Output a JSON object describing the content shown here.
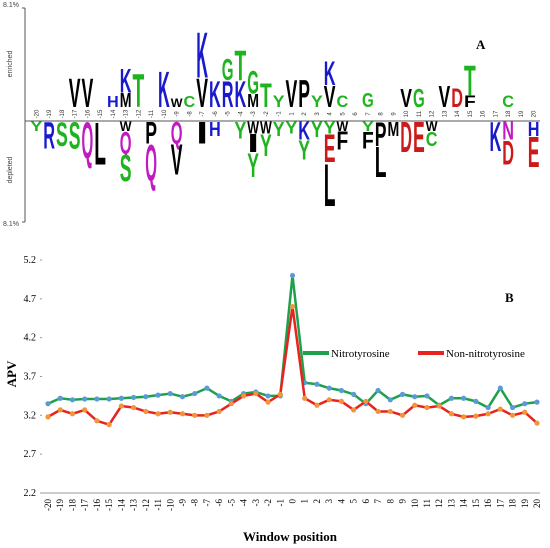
{
  "chart_data": [
    {
      "type": "logo",
      "label": "A",
      "ylim": [
        -8.1,
        8.1
      ],
      "yticks": [
        {
          "value": 8.1,
          "label": "8.1%"
        },
        {
          "value": -8.1,
          "label": "8.1%"
        }
      ],
      "enriched_label": "enriched",
      "depleted_label": "depleted",
      "letter_colors": {
        "K": "#1a1acc",
        "R": "#1a1acc",
        "H": "#1a1acc",
        "D": "#cc1a1a",
        "E": "#cc1a1a",
        "G": "#1fb41f",
        "S": "#1fb41f",
        "T": "#1fb41f",
        "Y": "#1fb41f",
        "C": "#1fb41f",
        "N": "#c01ac0",
        "Q": "#c01ac0"
      },
      "default_letter_color": "#000000",
      "categories": [
        "-20",
        "-19",
        "-18",
        "-17",
        "-16",
        "-15",
        "-14",
        "-13",
        "-12",
        "-11",
        "-10",
        "-9",
        "-8",
        "-7",
        "-6",
        "-5",
        "-4",
        "-3",
        "-2",
        "-1",
        "1",
        "2",
        "3",
        "4",
        "5",
        "6",
        "7",
        "8",
        "9",
        "10",
        "11",
        "12",
        "13",
        "14",
        "15",
        "16",
        "17",
        "18",
        "19",
        "20"
      ],
      "enriched": [
        [],
        [],
        [],
        [
          {
            "letter": "V",
            "value": 2.4
          }
        ],
        [
          {
            "letter": "V",
            "value": 2.4
          }
        ],
        [],
        [
          {
            "letter": "H",
            "value": 0.9
          }
        ],
        [
          {
            "letter": "K",
            "value": 2.0
          },
          {
            "letter": "M",
            "value": 1.2
          }
        ],
        [
          {
            "letter": "T",
            "value": 2.8
          }
        ],
        [],
        [
          {
            "letter": "K",
            "value": 3.0
          }
        ],
        [
          {
            "letter": "W",
            "value": 0.7
          }
        ],
        [
          {
            "letter": "C",
            "value": 0.9
          }
        ],
        [
          {
            "letter": "K",
            "value": 3.8
          },
          {
            "letter": "V",
            "value": 2.4
          }
        ],
        [
          {
            "letter": "K",
            "value": 2.2
          }
        ],
        [
          {
            "letter": "G",
            "value": 1.8
          },
          {
            "letter": "R",
            "value": 2.2
          }
        ],
        [
          {
            "letter": "T",
            "value": 2.5
          },
          {
            "letter": "K",
            "value": 2.2
          }
        ],
        [
          {
            "letter": "G",
            "value": 1.9
          },
          {
            "letter": "M",
            "value": 1.1
          }
        ],
        [
          {
            "letter": "T",
            "value": 2.0
          }
        ],
        [
          {
            "letter": "Y",
            "value": 1.0
          }
        ],
        [
          {
            "letter": "V",
            "value": 2.3
          }
        ],
        [
          {
            "letter": "P",
            "value": 2.3
          }
        ],
        [
          {
            "letter": "Y",
            "value": 1.0
          }
        ],
        [
          {
            "letter": "K",
            "value": 2.0
          },
          {
            "letter": "V",
            "value": 1.8
          }
        ],
        [
          {
            "letter": "C",
            "value": 1.0
          }
        ],
        [],
        [
          {
            "letter": "G",
            "value": 1.2
          }
        ],
        [],
        [],
        [
          {
            "letter": "V",
            "value": 1.5
          }
        ],
        [
          {
            "letter": "G",
            "value": 1.5
          }
        ],
        [],
        [
          {
            "letter": "V",
            "value": 1.8
          }
        ],
        [
          {
            "letter": "D",
            "value": 1.6
          }
        ],
        [
          {
            "letter": "T",
            "value": 2.5
          },
          {
            "letter": "F",
            "value": 1.0
          }
        ],
        [],
        [],
        [
          {
            "letter": "C",
            "value": 1.0
          }
        ],
        [],
        []
      ],
      "depleted": [
        [
          {
            "letter": "Y",
            "value": -0.8
          }
        ],
        [
          {
            "letter": "R",
            "value": -2.2
          }
        ],
        [
          {
            "letter": "S",
            "value": -2.0
          }
        ],
        [
          {
            "letter": "S",
            "value": -2.2
          }
        ],
        [
          {
            "letter": "Q",
            "value": -3.0
          }
        ],
        [
          {
            "letter": "L",
            "value": -3.5
          }
        ],
        [],
        [
          {
            "letter": "W",
            "value": -0.8
          },
          {
            "letter": "Q",
            "value": -1.8
          },
          {
            "letter": "S",
            "value": -2.2
          }
        ],
        [],
        [
          {
            "letter": "P",
            "value": -1.8
          },
          {
            "letter": "Q",
            "value": -3.0
          }
        ],
        [],
        [
          {
            "letter": "Q",
            "value": -1.8
          },
          {
            "letter": "V",
            "value": -2.5
          }
        ],
        [],
        [
          {
            "letter": "I",
            "value": -1.8
          }
        ],
        [
          {
            "letter": "H",
            "value": -1.2
          }
        ],
        [],
        [
          {
            "letter": "Y",
            "value": -1.4
          }
        ],
        [
          {
            "letter": "W",
            "value": -1.0
          },
          {
            "letter": "I",
            "value": -1.5
          },
          {
            "letter": "Y",
            "value": -2.0
          }
        ],
        [
          {
            "letter": "W",
            "value": -1.0
          },
          {
            "letter": "Y",
            "value": -1.8
          }
        ],
        [
          {
            "letter": "Y",
            "value": -1.2
          }
        ],
        [
          {
            "letter": "Y",
            "value": -1.0
          }
        ],
        [
          {
            "letter": "K",
            "value": -1.5
          },
          {
            "letter": "Y",
            "value": -1.6
          }
        ],
        [
          {
            "letter": "Y",
            "value": -1.3
          }
        ],
        [
          {
            "letter": "Y",
            "value": -1.0
          },
          {
            "letter": "E",
            "value": -2.3
          },
          {
            "letter": "L",
            "value": -3.5
          }
        ],
        [
          {
            "letter": "W",
            "value": -0.8
          },
          {
            "letter": "F",
            "value": -1.5
          }
        ],
        [],
        [
          {
            "letter": "Y",
            "value": -0.8
          },
          {
            "letter": "F",
            "value": -1.4
          }
        ],
        [
          {
            "letter": "P",
            "value": -2.0
          },
          {
            "letter": "L",
            "value": -2.5
          }
        ],
        [
          {
            "letter": "M",
            "value": -1.2
          }
        ],
        [
          {
            "letter": "D",
            "value": -2.5
          }
        ],
        [
          {
            "letter": "E",
            "value": -2.5
          }
        ],
        [
          {
            "letter": "W",
            "value": -0.8
          },
          {
            "letter": "C",
            "value": -1.2
          }
        ],
        [],
        [],
        [],
        [],
        [
          {
            "letter": "K",
            "value": -2.4
          }
        ],
        [
          {
            "letter": "N",
            "value": -1.5
          },
          {
            "letter": "D",
            "value": -2.0
          }
        ],
        [],
        [
          {
            "letter": "H",
            "value": -1.2
          },
          {
            "letter": "E",
            "value": -2.5
          }
        ]
      ]
    },
    {
      "type": "line",
      "label": "B",
      "xlabel": "Window position",
      "ylabel": "APV",
      "categories": [
        "-20",
        "-19",
        "-18",
        "-17",
        "-16",
        "-15",
        "-14",
        "-13",
        "-12",
        "-11",
        "-10",
        "-9",
        "-8",
        "-7",
        "-6",
        "-5",
        "-4",
        "-3",
        "-2",
        "-1",
        "0",
        "1",
        "2",
        "3",
        "4",
        "5",
        "6",
        "7",
        "8",
        "9",
        "10",
        "11",
        "12",
        "13",
        "14",
        "15",
        "16",
        "17",
        "18",
        "19",
        "20"
      ],
      "ylim": [
        2.2,
        5.2
      ],
      "yticks": [
        2.2,
        2.7,
        3.2,
        3.7,
        4.2,
        4.7,
        5.2
      ],
      "legend": "upper right",
      "series": [
        {
          "name": "Nitrotyrosine",
          "color": "#1fa04a",
          "marker_color": "#5b9bd5",
          "values": [
            3.35,
            3.42,
            3.4,
            3.41,
            3.41,
            3.41,
            3.42,
            3.43,
            3.44,
            3.46,
            3.48,
            3.44,
            3.48,
            3.55,
            3.45,
            3.38,
            3.48,
            3.5,
            3.45,
            3.45,
            5.0,
            3.62,
            3.6,
            3.55,
            3.52,
            3.47,
            3.35,
            3.52,
            3.4,
            3.47,
            3.44,
            3.45,
            3.33,
            3.42,
            3.42,
            3.38,
            3.3,
            3.55,
            3.3,
            3.35,
            3.37
          ]
        },
        {
          "name": "Non-nitrotyrosine",
          "color": "#e8231f",
          "marker_color": "#f0963a",
          "values": [
            3.18,
            3.27,
            3.22,
            3.27,
            3.13,
            3.08,
            3.32,
            3.3,
            3.25,
            3.22,
            3.24,
            3.22,
            3.2,
            3.2,
            3.25,
            3.35,
            3.45,
            3.48,
            3.37,
            3.47,
            4.6,
            3.42,
            3.33,
            3.4,
            3.38,
            3.27,
            3.38,
            3.25,
            3.25,
            3.2,
            3.33,
            3.3,
            3.32,
            3.22,
            3.18,
            3.19,
            3.22,
            3.28,
            3.2,
            3.24,
            3.1
          ]
        }
      ]
    }
  ]
}
